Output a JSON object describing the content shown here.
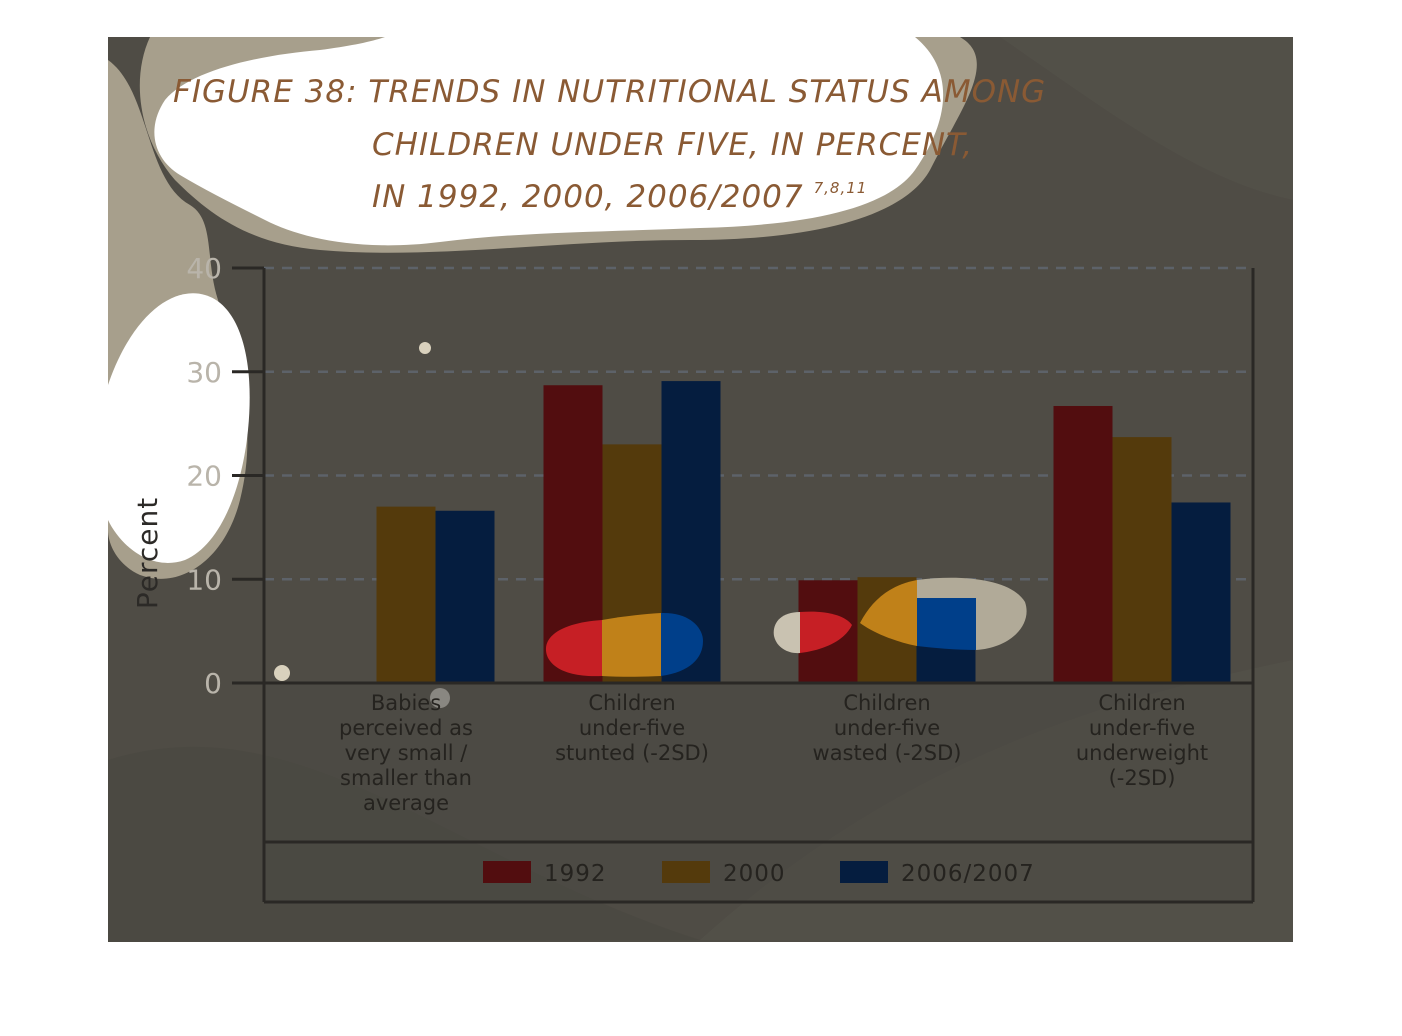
{
  "chart_data": {
    "type": "bar",
    "title_lines": [
      "FIGURE 38: TRENDS IN NUTRITIONAL STATUS AMONG",
      "CHILDREN UNDER FIVE, IN PERCENT,",
      "IN 1992, 2000, 2006/2007"
    ],
    "title_superscript": "7,8,11",
    "ylabel": "Percent",
    "ylim": [
      0,
      40
    ],
    "yticks": [
      "0",
      "10",
      "20",
      "30",
      "40"
    ],
    "grid": true,
    "categories": [
      [
        "Babies",
        "perceived as",
        "very small /",
        "smaller than",
        "average"
      ],
      [
        "Children",
        "under-five",
        "stunted (-2SD)"
      ],
      [
        "Children",
        "under-five",
        "wasted (-2SD)"
      ],
      [
        "Children",
        "under-five",
        "underweight",
        "(-2SD)"
      ]
    ],
    "series": [
      {
        "name": "1992",
        "color": "#520d0f",
        "values": [
          null,
          28.7,
          9.9,
          26.7
        ]
      },
      {
        "name": "2000",
        "color": "#543a0c",
        "values": [
          17.0,
          23.0,
          10.2,
          23.7
        ]
      },
      {
        "name": "2006/2007",
        "color": "#051d3f",
        "values": [
          16.6,
          29.1,
          8.8,
          17.4
        ]
      }
    ],
    "legend_position": "bottom"
  }
}
